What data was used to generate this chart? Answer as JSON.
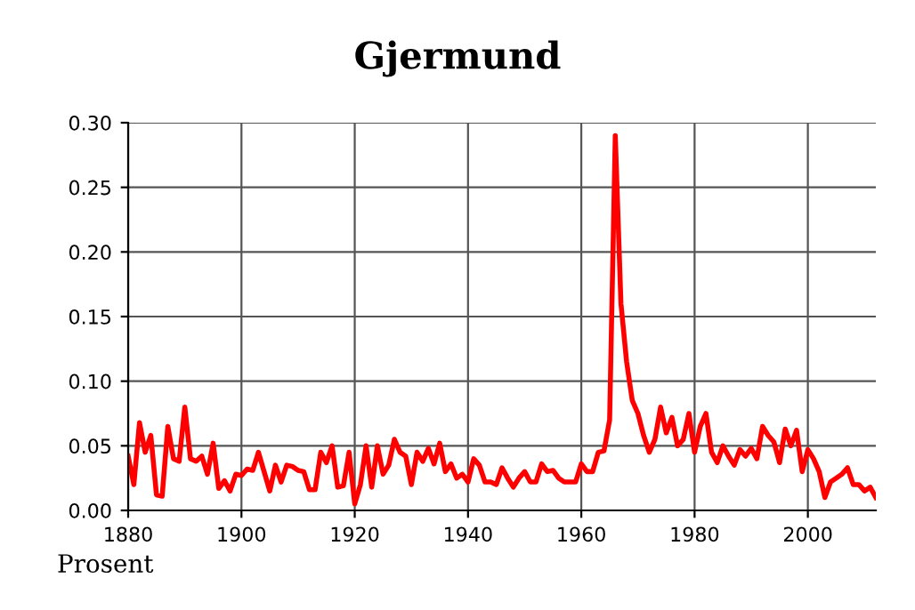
{
  "chart_data": {
    "type": "line",
    "title": "Gjermund",
    "annotations": [
      "Prosent"
    ],
    "x": [
      1880,
      1881,
      1882,
      1883,
      1884,
      1885,
      1886,
      1887,
      1888,
      1889,
      1890,
      1891,
      1892,
      1893,
      1894,
      1895,
      1896,
      1897,
      1898,
      1899,
      1900,
      1901,
      1902,
      1903,
      1904,
      1905,
      1906,
      1907,
      1908,
      1909,
      1910,
      1911,
      1912,
      1913,
      1914,
      1915,
      1916,
      1917,
      1918,
      1919,
      1920,
      1921,
      1922,
      1923,
      1924,
      1925,
      1926,
      1927,
      1928,
      1929,
      1930,
      1931,
      1932,
      1933,
      1934,
      1935,
      1936,
      1937,
      1938,
      1939,
      1940,
      1941,
      1942,
      1943,
      1944,
      1945,
      1946,
      1947,
      1948,
      1949,
      1950,
      1951,
      1952,
      1953,
      1954,
      1955,
      1956,
      1957,
      1958,
      1959,
      1960,
      1961,
      1962,
      1963,
      1964,
      1965,
      1966,
      1967,
      1968,
      1969,
      1970,
      1971,
      1972,
      1973,
      1974,
      1975,
      1976,
      1977,
      1978,
      1979,
      1980,
      1981,
      1982,
      1983,
      1984,
      1985,
      1986,
      1987,
      1988,
      1989,
      1990,
      1991,
      1992,
      1993,
      1994,
      1995,
      1996,
      1997,
      1998,
      1999,
      2000,
      2001,
      2002,
      2003,
      2004,
      2005,
      2006,
      2007,
      2008,
      2009,
      2010,
      2011,
      2012
    ],
    "series": [
      {
        "color": "#ff0000",
        "values": [
          0.042,
          0.02,
          0.068,
          0.045,
          0.058,
          0.012,
          0.011,
          0.065,
          0.04,
          0.038,
          0.08,
          0.04,
          0.038,
          0.042,
          0.028,
          0.052,
          0.017,
          0.023,
          0.015,
          0.028,
          0.027,
          0.032,
          0.031,
          0.045,
          0.03,
          0.015,
          0.035,
          0.022,
          0.035,
          0.034,
          0.031,
          0.03,
          0.016,
          0.016,
          0.045,
          0.037,
          0.05,
          0.018,
          0.019,
          0.045,
          0.005,
          0.02,
          0.05,
          0.018,
          0.05,
          0.028,
          0.035,
          0.055,
          0.045,
          0.042,
          0.02,
          0.045,
          0.038,
          0.048,
          0.036,
          0.052,
          0.03,
          0.036,
          0.025,
          0.028,
          0.022,
          0.04,
          0.035,
          0.022,
          0.022,
          0.02,
          0.033,
          0.025,
          0.018,
          0.025,
          0.03,
          0.022,
          0.022,
          0.036,
          0.03,
          0.031,
          0.025,
          0.022,
          0.022,
          0.022,
          0.036,
          0.03,
          0.03,
          0.045,
          0.046,
          0.07,
          0.29,
          0.16,
          0.115,
          0.085,
          0.075,
          0.058,
          0.045,
          0.055,
          0.08,
          0.06,
          0.072,
          0.05,
          0.055,
          0.075,
          0.045,
          0.065,
          0.075,
          0.045,
          0.037,
          0.05,
          0.042,
          0.035,
          0.047,
          0.042,
          0.048,
          0.04,
          0.065,
          0.058,
          0.053,
          0.037,
          0.063,
          0.05,
          0.062,
          0.03,
          0.047,
          0.04,
          0.03,
          0.01,
          0.022,
          0.025,
          0.028,
          0.033,
          0.02,
          0.02,
          0.015,
          0.018,
          0.01
        ]
      }
    ],
    "xlim": [
      1880,
      2012
    ],
    "xticks": [
      1880,
      1900,
      1920,
      1940,
      1960,
      1980,
      2000
    ],
    "ylim": [
      0,
      0.3
    ],
    "yticks": [
      {
        "value": 0,
        "label": "0.00"
      },
      {
        "value": 0.05,
        "label": "0.05"
      },
      {
        "value": 0.1,
        "label": "0.10"
      },
      {
        "value": 0.15,
        "label": "0.15"
      },
      {
        "value": 0.2,
        "label": "0.20"
      },
      {
        "value": 0.25,
        "label": "0.25"
      },
      {
        "value": 0.3,
        "label": "0.30"
      }
    ],
    "grid": true,
    "marker": "none",
    "line_style": "solid"
  }
}
